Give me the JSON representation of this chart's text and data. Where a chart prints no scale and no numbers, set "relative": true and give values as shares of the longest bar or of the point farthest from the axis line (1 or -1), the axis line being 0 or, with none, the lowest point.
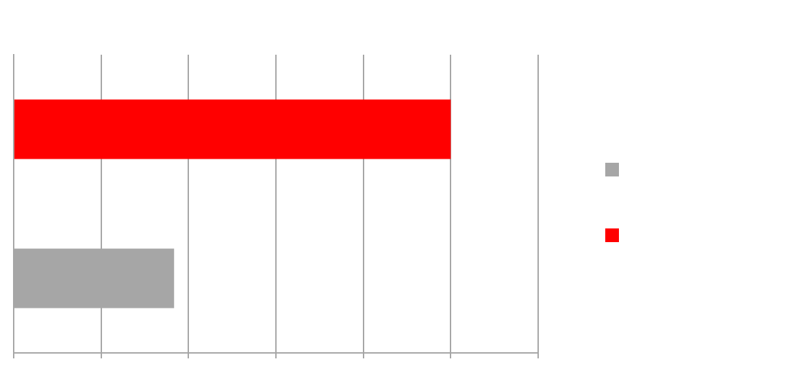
{
  "chart_data": {
    "type": "bar",
    "orientation": "horizontal",
    "relative": true,
    "categories": [
      null,
      null
    ],
    "values": [
      1,
      0.367
    ],
    "colors": [
      "#ff0000",
      "#a6a6a6"
    ],
    "grid": "x"
  }
}
